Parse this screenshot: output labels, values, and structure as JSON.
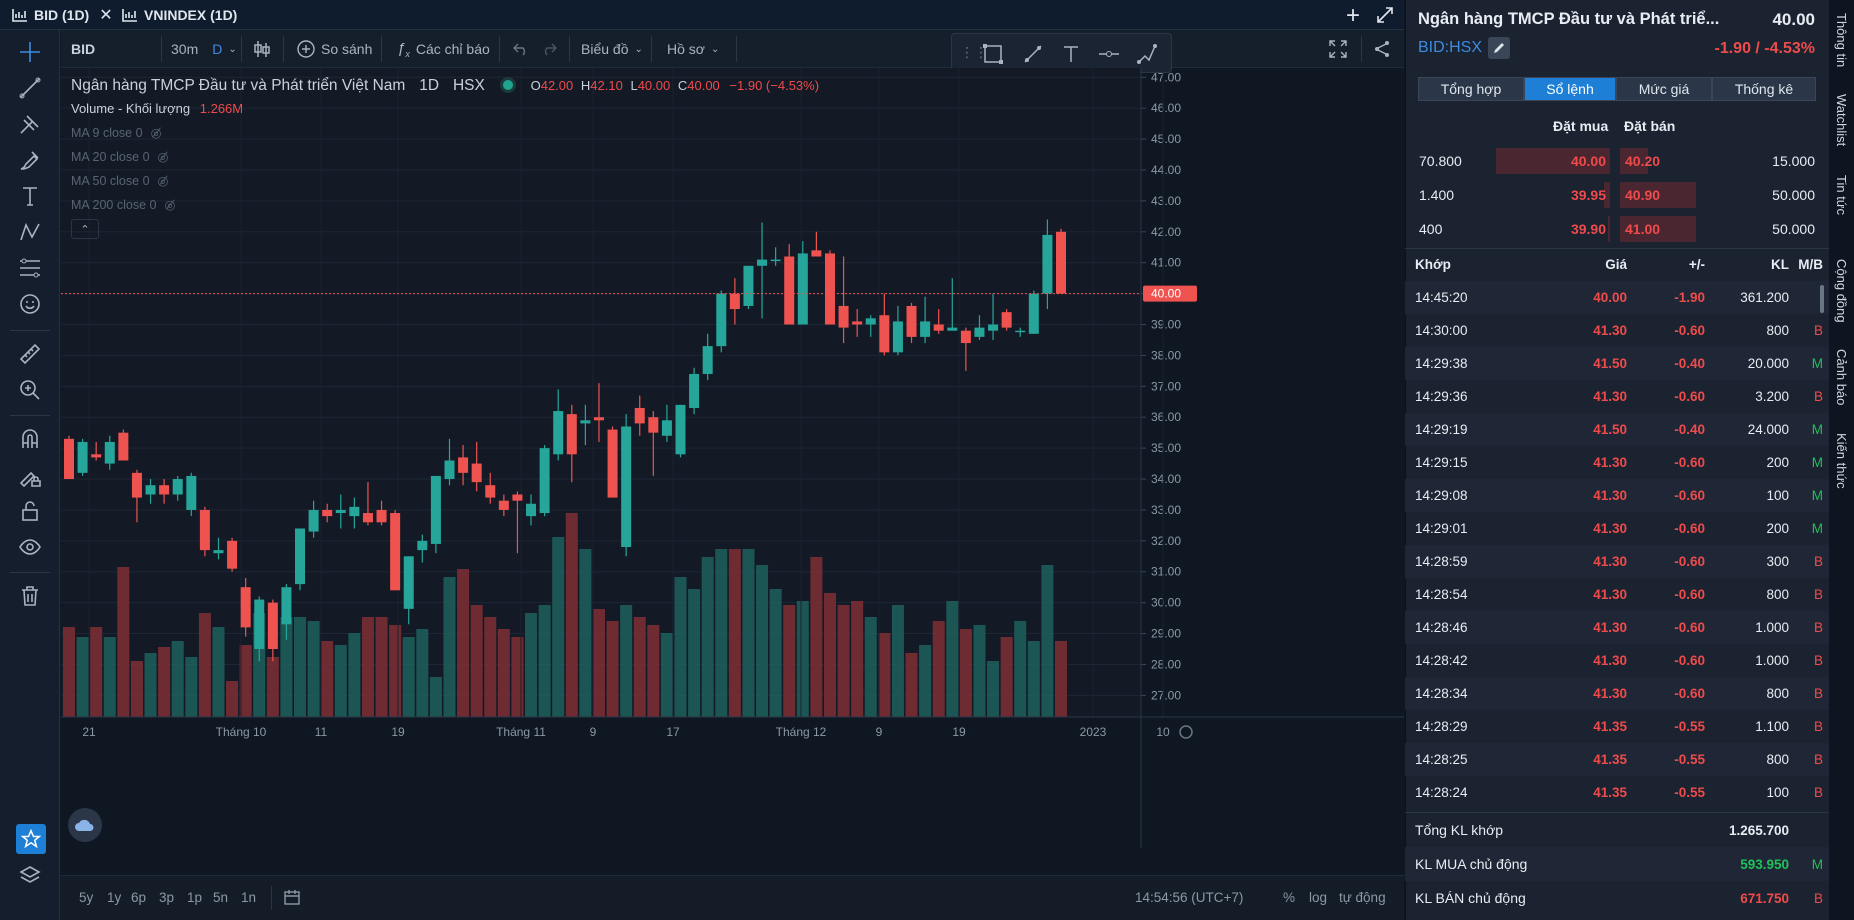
{
  "tabs": [
    {
      "label": "BID (1D)",
      "active": true
    },
    {
      "label": "VNINDEX (1D)",
      "active": false
    }
  ],
  "toolbar": {
    "symbol": "BID",
    "interval": "30m",
    "interval_unit": "D",
    "compare": "So sánh",
    "indicators": "Các chỉ báo",
    "chart_type": "Biểu đồ",
    "profile": "Hồ sơ"
  },
  "legend": {
    "name": "Ngân hàng TMCP Đầu tư và Phát triển Việt Nam",
    "period": "1D",
    "exchange": "HSX",
    "o_label": "O",
    "o": "42.00",
    "h_label": "H",
    "h": "42.10",
    "l_label": "L",
    "l": "40.00",
    "c_label": "C",
    "c": "40.00",
    "change": "−1.90 (−4.53%)",
    "volume_label": "Volume - Khối lượng",
    "volume_value": "1.266M",
    "ma": [
      "MA 9 close 0",
      "MA 20 close 0",
      "MA 50 close 0",
      "MA 200 close 0"
    ]
  },
  "chart_data": {
    "type": "candlestick",
    "y_ticks": [
      "47.00",
      "46.00",
      "45.00",
      "44.00",
      "43.00",
      "42.00",
      "41.00",
      "40.00",
      "39.00",
      "38.00",
      "37.00",
      "36.00",
      "35.00",
      "34.00",
      "33.00",
      "32.00",
      "31.00",
      "30.00",
      "29.00",
      "28.00",
      "27.00"
    ],
    "y_range": [
      26.3,
      47.3
    ],
    "last_price_label": "40.00",
    "x_ticks": [
      "21",
      "Tháng 10",
      "11",
      "19",
      "Tháng 11",
      "9",
      "17",
      "Tháng 12",
      "9",
      "19",
      "2023",
      "10"
    ],
    "candles": [
      {
        "o": 35.3,
        "h": 35.4,
        "l": 34.0,
        "c": 34.0
      },
      {
        "o": 34.2,
        "h": 35.3,
        "l": 34.1,
        "c": 35.2
      },
      {
        "o": 34.8,
        "h": 35.2,
        "l": 34.6,
        "c": 34.7
      },
      {
        "o": 34.5,
        "h": 35.4,
        "l": 34.3,
        "c": 35.2
      },
      {
        "o": 35.5,
        "h": 35.6,
        "l": 34.6,
        "c": 34.6
      },
      {
        "o": 34.2,
        "h": 34.3,
        "l": 32.6,
        "c": 33.4
      },
      {
        "o": 33.5,
        "h": 34.0,
        "l": 33.2,
        "c": 33.8
      },
      {
        "o": 33.8,
        "h": 34.0,
        "l": 33.2,
        "c": 33.5
      },
      {
        "o": 33.5,
        "h": 34.1,
        "l": 33.3,
        "c": 34.0
      },
      {
        "o": 33.0,
        "h": 34.2,
        "l": 32.8,
        "c": 34.1
      },
      {
        "o": 33.0,
        "h": 33.1,
        "l": 31.5,
        "c": 31.7
      },
      {
        "o": 31.6,
        "h": 32.1,
        "l": 31.4,
        "c": 31.7
      },
      {
        "o": 32.0,
        "h": 32.1,
        "l": 31.0,
        "c": 31.1
      },
      {
        "o": 30.5,
        "h": 30.8,
        "l": 28.9,
        "c": 29.2
      },
      {
        "o": 28.5,
        "h": 30.2,
        "l": 28.1,
        "c": 30.1
      },
      {
        "o": 30.0,
        "h": 30.1,
        "l": 28.1,
        "c": 28.5
      },
      {
        "o": 29.3,
        "h": 30.6,
        "l": 28.8,
        "c": 30.5
      },
      {
        "o": 30.6,
        "h": 32.4,
        "l": 30.4,
        "c": 32.4
      },
      {
        "o": 32.3,
        "h": 33.3,
        "l": 32.1,
        "c": 33.0
      },
      {
        "o": 33.0,
        "h": 33.2,
        "l": 32.6,
        "c": 32.8
      },
      {
        "o": 32.9,
        "h": 33.5,
        "l": 32.4,
        "c": 33.0
      },
      {
        "o": 32.8,
        "h": 33.4,
        "l": 32.4,
        "c": 33.1
      },
      {
        "o": 32.9,
        "h": 33.9,
        "l": 32.5,
        "c": 32.6
      },
      {
        "o": 33.0,
        "h": 33.3,
        "l": 32.5,
        "c": 32.6
      },
      {
        "o": 32.9,
        "h": 33.0,
        "l": 30.4,
        "c": 30.4
      },
      {
        "o": 29.8,
        "h": 31.5,
        "l": 29.3,
        "c": 31.5
      },
      {
        "o": 31.7,
        "h": 32.2,
        "l": 31.3,
        "c": 32.0
      },
      {
        "o": 31.9,
        "h": 34.1,
        "l": 31.6,
        "c": 34.1
      },
      {
        "o": 34.0,
        "h": 35.3,
        "l": 33.8,
        "c": 34.6
      },
      {
        "o": 34.7,
        "h": 35.1,
        "l": 33.8,
        "c": 34.2
      },
      {
        "o": 34.5,
        "h": 35.2,
        "l": 33.6,
        "c": 33.9
      },
      {
        "o": 33.8,
        "h": 34.2,
        "l": 33.2,
        "c": 33.4
      },
      {
        "o": 33.3,
        "h": 33.5,
        "l": 32.8,
        "c": 33.0
      },
      {
        "o": 33.5,
        "h": 33.6,
        "l": 31.6,
        "c": 33.3
      },
      {
        "o": 32.8,
        "h": 33.5,
        "l": 32.5,
        "c": 33.2
      },
      {
        "o": 32.9,
        "h": 35.1,
        "l": 32.8,
        "c": 35.0
      },
      {
        "o": 34.8,
        "h": 36.9,
        "l": 34.6,
        "c": 36.2
      },
      {
        "o": 36.1,
        "h": 36.4,
        "l": 33.9,
        "c": 34.8
      },
      {
        "o": 35.8,
        "h": 36.4,
        "l": 35.1,
        "c": 35.9
      },
      {
        "o": 36.0,
        "h": 37.1,
        "l": 35.2,
        "c": 35.9
      },
      {
        "o": 35.6,
        "h": 35.7,
        "l": 33.4,
        "c": 33.4
      },
      {
        "o": 31.8,
        "h": 36.1,
        "l": 31.5,
        "c": 35.7
      },
      {
        "o": 36.3,
        "h": 36.7,
        "l": 35.4,
        "c": 35.8
      },
      {
        "o": 36.0,
        "h": 36.2,
        "l": 34.1,
        "c": 35.5
      },
      {
        "o": 35.4,
        "h": 36.4,
        "l": 35.2,
        "c": 35.9
      },
      {
        "o": 34.8,
        "h": 36.4,
        "l": 34.7,
        "c": 36.4
      },
      {
        "o": 36.3,
        "h": 37.6,
        "l": 36.1,
        "c": 37.4
      },
      {
        "o": 37.4,
        "h": 38.7,
        "l": 37.2,
        "c": 38.3
      },
      {
        "o": 38.3,
        "h": 40.1,
        "l": 38.1,
        "c": 40.0
      },
      {
        "o": 40.0,
        "h": 40.5,
        "l": 39.0,
        "c": 39.5
      },
      {
        "o": 39.6,
        "h": 40.8,
        "l": 39.5,
        "c": 40.9
      },
      {
        "o": 40.9,
        "h": 42.3,
        "l": 39.2,
        "c": 41.1
      },
      {
        "o": 41.1,
        "h": 41.5,
        "l": 40.9,
        "c": 41.1
      },
      {
        "o": 41.2,
        "h": 41.6,
        "l": 39.0,
        "c": 39.0
      },
      {
        "o": 39.0,
        "h": 41.7,
        "l": 39.0,
        "c": 41.3
      },
      {
        "o": 41.4,
        "h": 42.0,
        "l": 41.2,
        "c": 41.2
      },
      {
        "o": 41.3,
        "h": 41.4,
        "l": 39.0,
        "c": 39.0
      },
      {
        "o": 39.6,
        "h": 41.2,
        "l": 38.4,
        "c": 38.9
      },
      {
        "o": 39.1,
        "h": 39.5,
        "l": 38.6,
        "c": 39.0
      },
      {
        "o": 39.0,
        "h": 39.3,
        "l": 38.6,
        "c": 39.2
      },
      {
        "o": 39.3,
        "h": 40.0,
        "l": 38.0,
        "c": 38.1
      },
      {
        "o": 38.1,
        "h": 39.6,
        "l": 38.0,
        "c": 39.1
      },
      {
        "o": 39.6,
        "h": 39.7,
        "l": 38.4,
        "c": 38.6
      },
      {
        "o": 38.6,
        "h": 39.9,
        "l": 38.4,
        "c": 39.1
      },
      {
        "o": 39.0,
        "h": 39.5,
        "l": 38.7,
        "c": 38.8
      },
      {
        "o": 38.8,
        "h": 40.5,
        "l": 38.8,
        "c": 38.9
      },
      {
        "o": 38.8,
        "h": 38.9,
        "l": 37.5,
        "c": 38.4
      },
      {
        "o": 38.6,
        "h": 39.3,
        "l": 38.5,
        "c": 38.9
      },
      {
        "o": 38.8,
        "h": 40.0,
        "l": 38.5,
        "c": 39.0
      },
      {
        "o": 39.4,
        "h": 39.5,
        "l": 38.8,
        "c": 38.9
      },
      {
        "o": 38.8,
        "h": 38.9,
        "l": 38.6,
        "c": 38.8
      },
      {
        "o": 38.7,
        "h": 40.1,
        "l": 38.7,
        "c": 40.0
      },
      {
        "o": 40.0,
        "h": 42.4,
        "l": 39.5,
        "c": 41.9
      },
      {
        "o": 42.0,
        "h": 42.1,
        "l": 40.0,
        "c": 40.0
      }
    ],
    "volumes": [
      0.45,
      0.4,
      0.45,
      0.4,
      0.75,
      0.28,
      0.32,
      0.35,
      0.38,
      0.3,
      0.52,
      0.45,
      0.18,
      0.36,
      0.52,
      0.3,
      0.5,
      0.5,
      0.48,
      0.38,
      0.36,
      0.42,
      0.5,
      0.5,
      0.46,
      0.4,
      0.44,
      0.2,
      0.7,
      0.74,
      0.56,
      0.5,
      0.44,
      0.4,
      0.52,
      0.56,
      0.9,
      1.02,
      0.84,
      0.54,
      0.48,
      0.56,
      0.5,
      0.46,
      0.42,
      0.7,
      0.64,
      0.8,
      0.84,
      0.84,
      0.84,
      0.76,
      0.64,
      0.56,
      0.58,
      0.8,
      0.62,
      0.56,
      0.58,
      0.5,
      0.42,
      0.56,
      0.32,
      0.36,
      0.48,
      0.58,
      0.44,
      0.46,
      0.28,
      0.4,
      0.48,
      0.38,
      0.76,
      0.38
    ],
    "up_color": "#26a69a",
    "down_color": "#ef5350"
  },
  "bottom": {
    "ranges": [
      "5y",
      "1y",
      "6p",
      "3p",
      "1p",
      "5n",
      "1n"
    ],
    "time": "14:54:56 (UTC+7)",
    "percent": "%",
    "log": "log",
    "auto": "tự động"
  },
  "panel": {
    "title": "Ngân hàng TMCP Đầu tư và Phát triể...",
    "price": "40.00",
    "ticker": "BID:HSX",
    "change": "-1.90 / -4.53%",
    "segments": [
      {
        "label": "Tổng hợp",
        "active": false
      },
      {
        "label": "Sổ lệnh",
        "active": true
      },
      {
        "label": "Mức giá",
        "active": false
      },
      {
        "label": "Thống kê",
        "active": false
      }
    ],
    "ob_header_buy": "Đặt mua",
    "ob_header_sell": "Đặt bán",
    "orderbook": [
      {
        "bid_vol": "70.800",
        "bid": "40.00",
        "ask": "40.20",
        "ask_vol": "15.000",
        "bid_fill": 0.95,
        "ask_fill": 0.35
      },
      {
        "bid_vol": "1.400",
        "bid": "39.95",
        "ask": "40.90",
        "ask_vol": "50.000",
        "bid_fill": 0.05,
        "ask_fill": 0.95
      },
      {
        "bid_vol": "400",
        "bid": "39.90",
        "ask": "41.00",
        "ask_vol": "50.000",
        "bid_fill": 0.02,
        "ask_fill": 0.95
      }
    ],
    "trade_headers": {
      "time": "Khớp",
      "price": "Giá",
      "change": "+/-",
      "vol": "KL",
      "side": "M/B"
    },
    "trades": [
      {
        "time": "14:45:20",
        "price": "40.00",
        "change": "-1.90",
        "vol": "361.200",
        "side": ""
      },
      {
        "time": "14:30:00",
        "price": "41.30",
        "change": "-0.60",
        "vol": "800",
        "side": "B"
      },
      {
        "time": "14:29:38",
        "price": "41.50",
        "change": "-0.40",
        "vol": "20.000",
        "side": "M"
      },
      {
        "time": "14:29:36",
        "price": "41.30",
        "change": "-0.60",
        "vol": "3.200",
        "side": "B"
      },
      {
        "time": "14:29:19",
        "price": "41.50",
        "change": "-0.40",
        "vol": "24.000",
        "side": "M"
      },
      {
        "time": "14:29:15",
        "price": "41.30",
        "change": "-0.60",
        "vol": "200",
        "side": "M"
      },
      {
        "time": "14:29:08",
        "price": "41.30",
        "change": "-0.60",
        "vol": "100",
        "side": "M"
      },
      {
        "time": "14:29:01",
        "price": "41.30",
        "change": "-0.60",
        "vol": "200",
        "side": "M"
      },
      {
        "time": "14:28:59",
        "price": "41.30",
        "change": "-0.60",
        "vol": "300",
        "side": "B"
      },
      {
        "time": "14:28:54",
        "price": "41.30",
        "change": "-0.60",
        "vol": "800",
        "side": "B"
      },
      {
        "time": "14:28:46",
        "price": "41.30",
        "change": "-0.60",
        "vol": "1.000",
        "side": "B"
      },
      {
        "time": "14:28:42",
        "price": "41.30",
        "change": "-0.60",
        "vol": "1.000",
        "side": "B"
      },
      {
        "time": "14:28:34",
        "price": "41.30",
        "change": "-0.60",
        "vol": "800",
        "side": "B"
      },
      {
        "time": "14:28:29",
        "price": "41.35",
        "change": "-0.55",
        "vol": "1.100",
        "side": "B"
      },
      {
        "time": "14:28:25",
        "price": "41.35",
        "change": "-0.55",
        "vol": "800",
        "side": "B"
      },
      {
        "time": "14:28:24",
        "price": "41.35",
        "change": "-0.55",
        "vol": "100",
        "side": "B"
      }
    ],
    "summary": [
      {
        "label": "Tổng KL khớp",
        "value": "1.265.700",
        "side": "",
        "color": "white"
      },
      {
        "label": "KL MUA chủ động",
        "value": "593.950",
        "side": "M",
        "color": "green"
      },
      {
        "label": "KL BÁN chủ động",
        "value": "671.750",
        "side": "B",
        "color": "red"
      }
    ]
  },
  "side_tabs": [
    "Thông tin",
    "Watchlist",
    "Tin tức",
    "Cộng đồng",
    "Cảnh báo",
    "Kiến thức"
  ]
}
